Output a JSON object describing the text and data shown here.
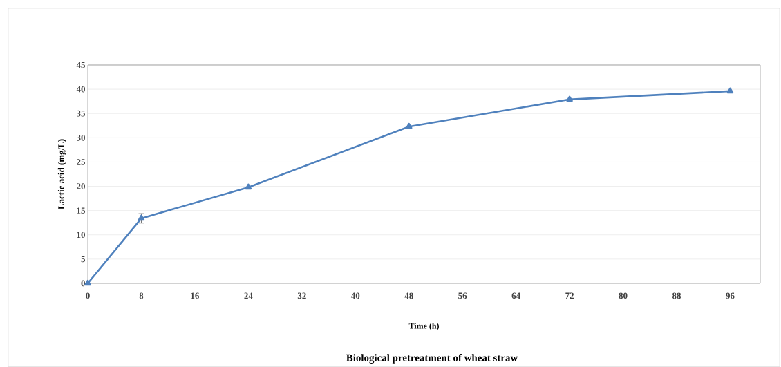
{
  "chart_data": {
    "type": "line",
    "title": "Biological pretreatment of wheat straw",
    "xlabel": "Time (h)",
    "ylabel": "Lactic acid (mg/L)",
    "x": [
      0,
      8,
      24,
      48,
      72,
      96
    ],
    "series": [
      {
        "color": "#4f81bd",
        "values": [
          0,
          13.4,
          19.8,
          32.3,
          37.9,
          39.6
        ],
        "errors": [
          null,
          1.0,
          null,
          null,
          null,
          null
        ]
      }
    ],
    "xlim": [
      0,
      100.5
    ],
    "xticks": [
      0,
      8,
      16,
      24,
      32,
      40,
      48,
      56,
      64,
      72,
      80,
      88,
      96
    ],
    "ylim": [
      0,
      45
    ],
    "yticks": [
      0,
      5,
      10,
      15,
      20,
      25,
      30,
      35,
      40,
      45
    ],
    "grid": "y",
    "marker": "triangle",
    "line_style": "solid"
  }
}
